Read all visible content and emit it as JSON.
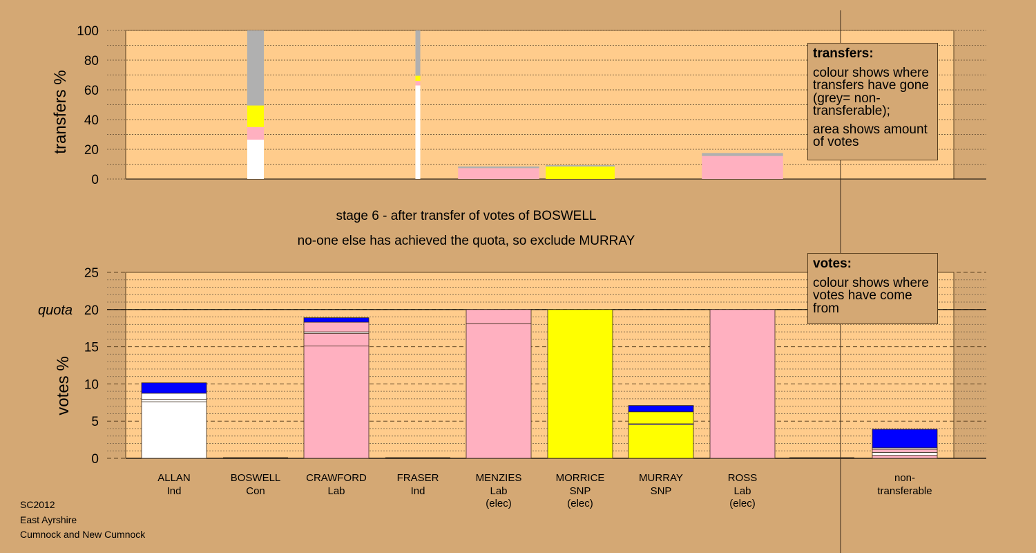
{
  "chart_data": [
    {
      "type": "bar",
      "stacked": true,
      "ylabel": "transfers %",
      "ylim": [
        0,
        100
      ],
      "yticks": [
        0,
        20,
        40,
        60,
        80,
        100
      ],
      "grid": "dotted",
      "colors": {
        "white": "#ffffff",
        "pink": "#ffb0c0",
        "yellow": "#ffff00",
        "grey": "#b0b0b0",
        "blue": "#0000ff",
        "panel": "#ffcc8c"
      },
      "series_order": [
        "white",
        "pink",
        "yellow",
        "grey"
      ],
      "bars": [
        {
          "category": "BOSWELL",
          "white": 26.5,
          "pink": 8.5,
          "yellow": 14.5,
          "grey": 50.5
        },
        {
          "category": "FRASER",
          "white": 63,
          "pink": 3,
          "yellow": 3.5,
          "grey": 30.5
        },
        {
          "category": "MENZIES",
          "white": 0,
          "pink": 7.3,
          "yellow": 0,
          "grey": 1.2
        },
        {
          "category": "MORRICE",
          "white": 0,
          "pink": 0,
          "yellow": 8.5,
          "grey": 0.8
        },
        {
          "category": "ROSS",
          "white": 0,
          "pink": 15.5,
          "yellow": 0,
          "grey": 2
        }
      ]
    },
    {
      "type": "bar",
      "stacked": true,
      "ylabel": "votes %",
      "ylim": [
        0,
        25
      ],
      "yticks": [
        0,
        5,
        10,
        15,
        20,
        25
      ],
      "quota": 20,
      "quota_label": "quota",
      "grid": "dashed",
      "categories": [
        {
          "name": "ALLAN",
          "party": "Ind",
          "status": ""
        },
        {
          "name": "BOSWELL",
          "party": "Con",
          "status": ""
        },
        {
          "name": "CRAWFORD",
          "party": "Lab",
          "status": ""
        },
        {
          "name": "FRASER",
          "party": "Ind",
          "status": ""
        },
        {
          "name": "MENZIES",
          "party": "Lab",
          "status": "(elec)"
        },
        {
          "name": "MORRICE",
          "party": "SNP",
          "status": "(elec)"
        },
        {
          "name": "MURRAY",
          "party": "SNP",
          "status": ""
        },
        {
          "name": "ROSS",
          "party": "Lab",
          "status": "(elec)"
        },
        {
          "name": "",
          "party": "",
          "status": ""
        },
        {
          "name": "non-",
          "party": "transferable",
          "status": ""
        }
      ],
      "stacks": [
        [
          {
            "c": "white",
            "v": 7.6
          },
          {
            "c": "white",
            "v": 0.35
          },
          {
            "c": "white",
            "v": 0.8
          },
          {
            "c": "blue",
            "v": 1.4
          }
        ],
        [],
        [
          {
            "c": "pink",
            "v": 15.1
          },
          {
            "c": "pink",
            "v": 1.7
          },
          {
            "c": "white",
            "v": 0.2
          },
          {
            "c": "pink",
            "v": 1.3
          },
          {
            "c": "blue",
            "v": 0.6
          }
        ],
        [],
        [
          {
            "c": "pink",
            "v": 18.1
          },
          {
            "c": "pink",
            "v": 1.9
          }
        ],
        [
          {
            "c": "yellow",
            "v": 20
          }
        ],
        [
          {
            "c": "yellow",
            "v": 4.5
          },
          {
            "c": "white",
            "v": 0.15
          },
          {
            "c": "yellow",
            "v": 1.6
          },
          {
            "c": "blue",
            "v": 0.85
          }
        ],
        [
          {
            "c": "pink",
            "v": 20
          }
        ],
        [],
        [
          {
            "c": "pink",
            "v": 0.4
          },
          {
            "c": "white",
            "v": 0.4
          },
          {
            "c": "pink",
            "v": 0.4
          },
          {
            "c": "white",
            "v": 0.2
          },
          {
            "c": "blue",
            "v": 2.5
          }
        ]
      ]
    }
  ],
  "stage_text": {
    "line1": "stage 6 - after transfer of votes of BOSWELL",
    "line2": "no-one else has achieved the quota, so exclude MURRAY"
  },
  "legend_transfers": {
    "heading": "transfers:",
    "line1": "colour shows where transfers have gone (grey= non-transferable);",
    "line2": "area shows amount of votes"
  },
  "legend_votes": {
    "heading": "votes:",
    "line1": "colour shows where votes have come from"
  },
  "footer": {
    "line1": "SC2012",
    "line2": "East Ayrshire",
    "line3": "Cumnock and New Cumnock"
  }
}
